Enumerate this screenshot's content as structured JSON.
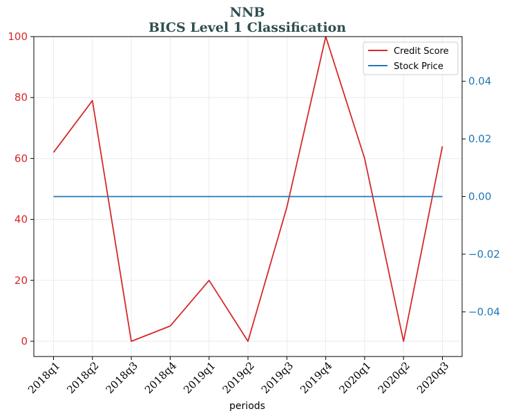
{
  "chart_data": {
    "type": "line",
    "title": "NNB",
    "subtitle": "BICS Level 1 Classification",
    "xlabel": "periods",
    "categories": [
      "2018q1",
      "2018q2",
      "2018q3",
      "2018q4",
      "2019q1",
      "2019q2",
      "2019q3",
      "2019q4",
      "2020q1",
      "2020q2",
      "2020q3"
    ],
    "series": [
      {
        "name": "Credit Score",
        "axis": "left",
        "color": "#d62728",
        "values": [
          62,
          79,
          0,
          5,
          20,
          0,
          44,
          100,
          60,
          0,
          64
        ]
      },
      {
        "name": "Stock Price",
        "axis": "right",
        "color": "#1f77b4",
        "values": [
          0,
          0,
          0,
          0,
          0,
          0,
          0,
          0,
          0,
          0,
          0
        ]
      }
    ],
    "y_left": {
      "ylim": [
        -5,
        100
      ],
      "ticks": [
        0,
        20,
        40,
        60,
        80,
        100
      ],
      "tick_labels": [
        "0",
        "20",
        "40",
        "60",
        "80",
        "100"
      ],
      "color": "#d62728"
    },
    "y_right": {
      "ylim": [
        -0.0555,
        0.0555
      ],
      "ticks": [
        -0.04,
        -0.02,
        0.0,
        0.02,
        0.04
      ],
      "tick_labels": [
        "−0.04",
        "−0.02",
        "0.00",
        "0.02",
        "0.04"
      ],
      "color": "#1f77b4"
    },
    "grid": true,
    "legend_position": "top-right"
  }
}
